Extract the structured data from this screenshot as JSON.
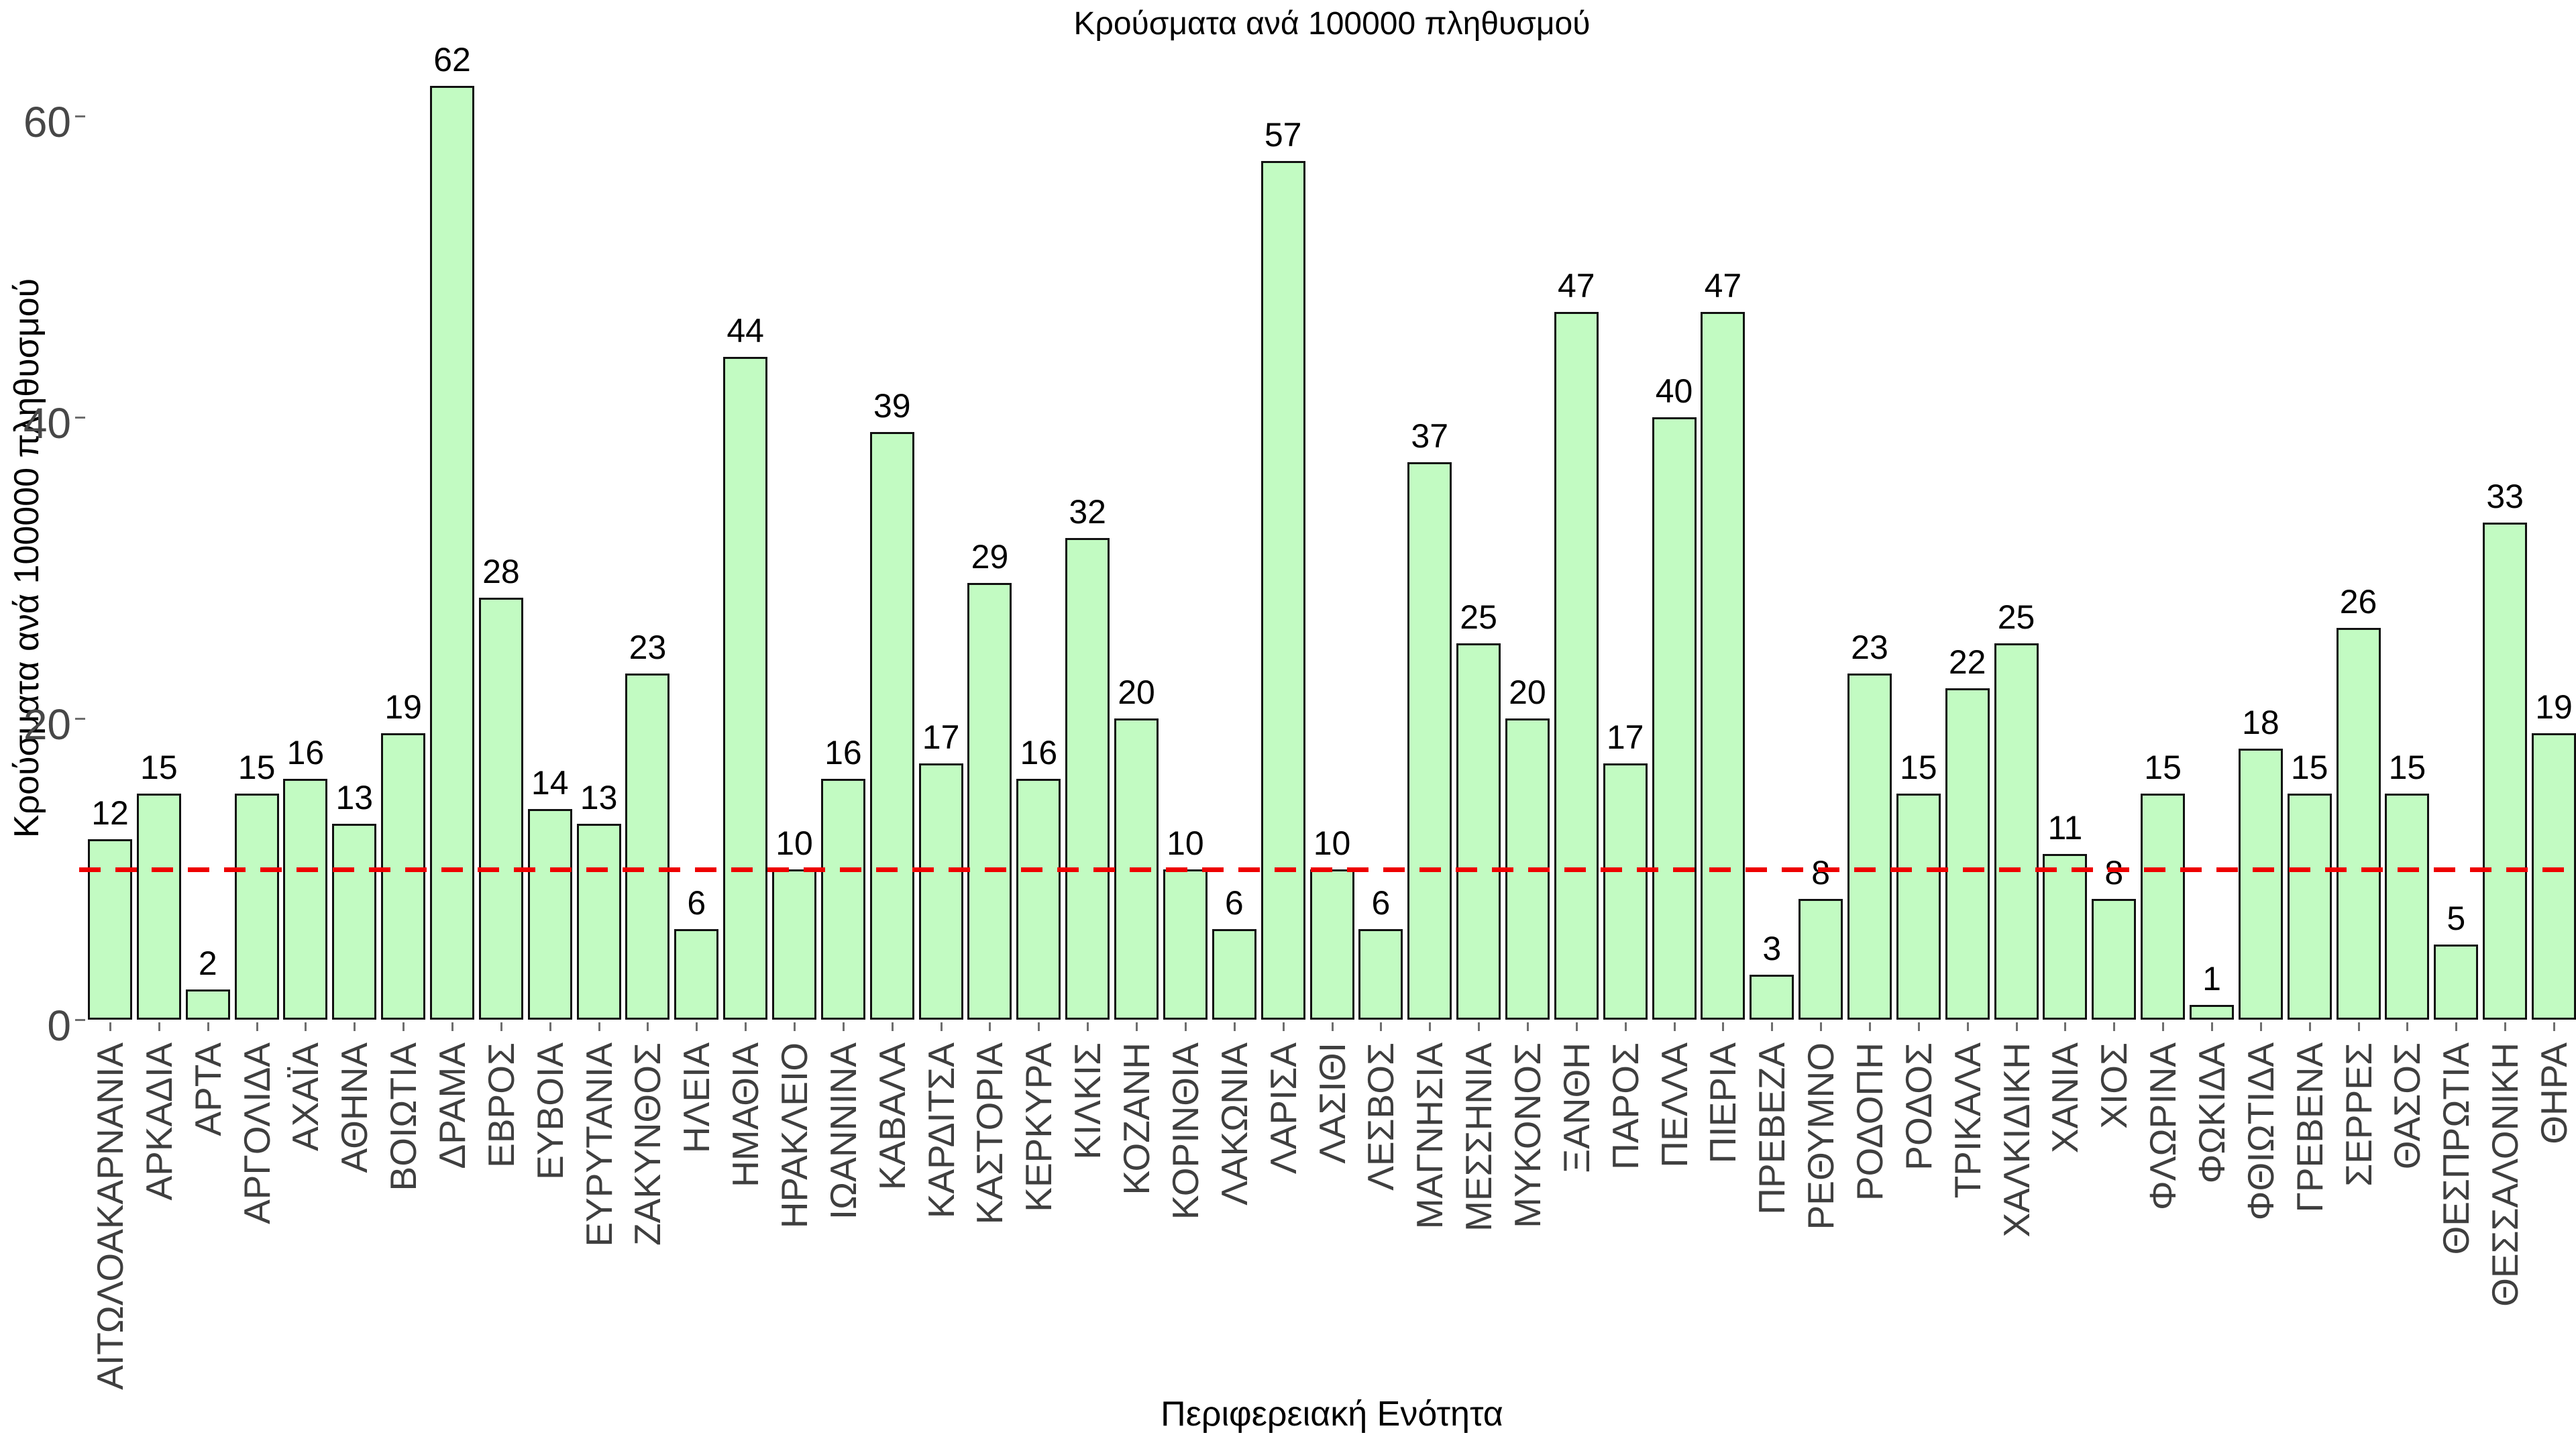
{
  "title": "Κρούσματα ανά 100000 πληθυσμού",
  "x_axis": {
    "label": "Περιφερειακή Ενότητα"
  },
  "y_axis": {
    "label": "Κρούσματα ανά 100000 πληθυσμού",
    "ticks": [
      "0",
      "20",
      "40",
      "60"
    ]
  },
  "reference_line": {
    "value": 10,
    "color": "#ee0000",
    "style": "dashed"
  },
  "colors": {
    "bar_fill": "#c2fbc2",
    "bar_border": "#111111",
    "tick_text": "#474747",
    "category_text": "#3f3f3f",
    "value_text": "#000000",
    "reference_line": "#ee0000",
    "background": "#ffffff"
  },
  "chart_data": {
    "type": "bar",
    "title": "Κρούσματα ανά 100000 πληθυσμού",
    "xlabel": "Περιφερειακή Ενότητα",
    "ylabel": "Κρούσματα ανά 100000 πληθυσμού",
    "ylim": [
      0,
      66
    ],
    "yticks": [
      0,
      20,
      40,
      60
    ],
    "grid": false,
    "legend_position": "none",
    "reference_line_y": 10,
    "categories": [
      "ΑΙΤΩΛΟΑΚΑΡΝΑΝΙΑ",
      "ΑΡΚΑΔΙΑ",
      "ΑΡΤΑ",
      "ΑΡΓΟΛΙΔΑ",
      "ΑΧΑΪΑ",
      "ΑΘΗΝΑ",
      "ΒΟΙΩΤΙΑ",
      "ΔΡΑΜΑ",
      "ΕΒΡΟΣ",
      "ΕΥΒΟΙΑ",
      "ΕΥΡΥΤΑΝΙΑ",
      "ΖΑΚΥΝΘΟΣ",
      "ΗΛΕΙΑ",
      "ΗΜΑΘΙΑ",
      "ΗΡΑΚΛΕΙΟ",
      "ΙΩΑΝΝΙΝΑ",
      "ΚΑΒΑΛΑ",
      "ΚΑΡΔΙΤΣΑ",
      "ΚΑΣΤΟΡΙΑ",
      "ΚΕΡΚΥΡΑ",
      "ΚΙΛΚΙΣ",
      "ΚΟΖΑΝΗ",
      "ΚΟΡΙΝΘΙΑ",
      "ΛΑΚΩΝΙΑ",
      "ΛΑΡΙΣΑ",
      "ΛΑΣΙΘΙ",
      "ΛΕΣΒΟΣ",
      "ΜΑΓΝΗΣΙΑ",
      "ΜΕΣΣΗΝΙΑ",
      "ΜΥΚΟΝΟΣ",
      "ΞΑΝΘΗ",
      "ΠΑΡΟΣ",
      "ΠΕΛΛΑ",
      "ΠΙΕΡΙΑ",
      "ΠΡΕΒΕΖΑ",
      "ΡΕΘΥΜΝΟ",
      "ΡΟΔΟΠΗ",
      "ΡΟΔΟΣ",
      "ΤΡΙΚΑΛΑ",
      "ΧΑΛΚΙΔΙΚΗ",
      "ΧΑΝΙΑ",
      "ΧΙΟΣ",
      "ΦΛΩΡΙΝΑ",
      "ΦΩΚΙΔΑ",
      "ΦΘΙΩΤΙΔΑ",
      "ΓΡΕΒΕΝΑ",
      "ΣΕΡΡΕΣ",
      "ΘΑΣΟΣ",
      "ΘΕΣΠΡΩΤΙΑ",
      "ΘΕΣΣΑΛΟΝΙΚΗ",
      "ΘΗΡΑ"
    ],
    "values": [
      12,
      15,
      2,
      15,
      16,
      13,
      19,
      62,
      28,
      14,
      13,
      23,
      6,
      44,
      10,
      16,
      39,
      17,
      29,
      16,
      32,
      20,
      10,
      6,
      57,
      10,
      6,
      37,
      25,
      20,
      47,
      17,
      40,
      47,
      3,
      8,
      23,
      15,
      22,
      25,
      11,
      8,
      15,
      1,
      18,
      15,
      26,
      15,
      5,
      33,
      19
    ]
  }
}
